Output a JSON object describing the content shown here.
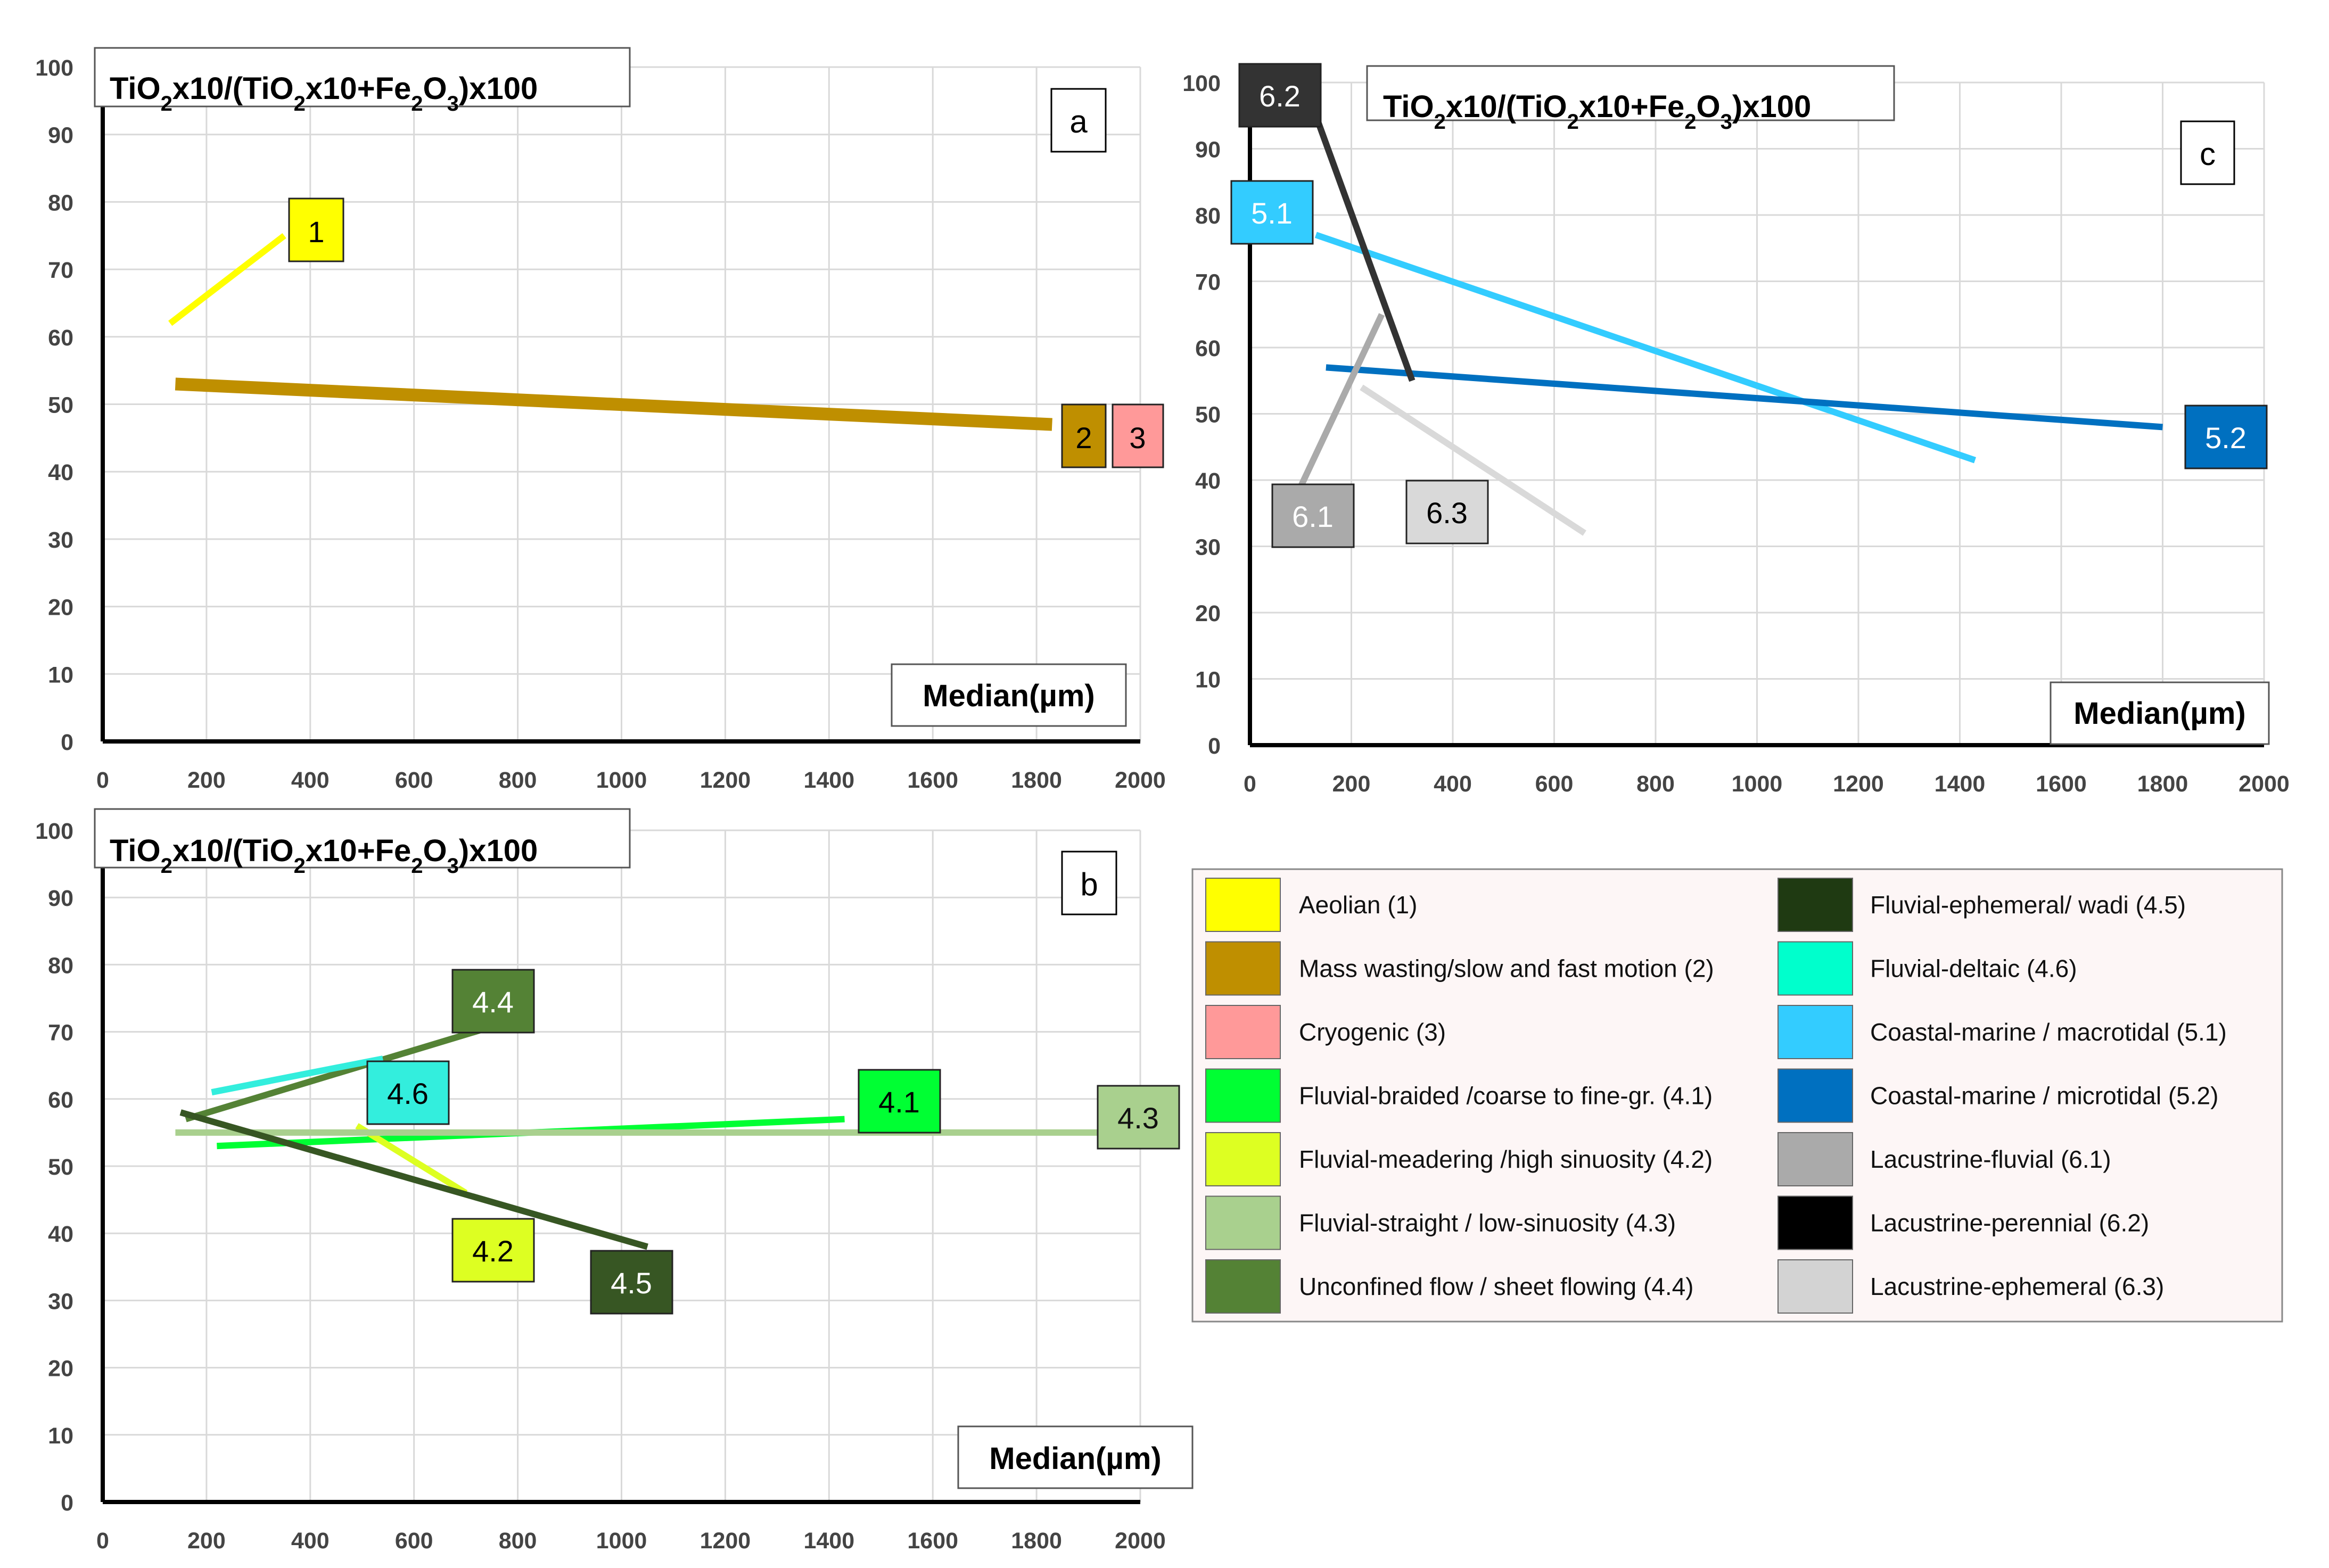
{
  "chart_data": [
    {
      "panel": "a",
      "type": "line",
      "title": "TiO2x10/(TiO2x10+Fe2O3)x100",
      "xlabel": "Median(µm)",
      "ylabel": "TiO2x10/(TiO2x10+Fe2O3)x100",
      "xlim": [
        0,
        2000
      ],
      "ylim": [
        0,
        100
      ],
      "xticks": [
        0,
        200,
        400,
        600,
        800,
        1000,
        1200,
        1400,
        1600,
        1800,
        2000
      ],
      "yticks": [
        0,
        10,
        20,
        30,
        40,
        50,
        60,
        70,
        80,
        90,
        100
      ],
      "grid": true,
      "series": [
        {
          "name": "1",
          "color": "#FFFF00",
          "x": [
            130,
            350
          ],
          "y": [
            62,
            75
          ]
        },
        {
          "name": "2",
          "color": "#BF8F00",
          "x": [
            140,
            1830
          ],
          "y": [
            53,
            47
          ]
        },
        {
          "name": "3",
          "color": "#FF9999",
          "x": [],
          "y": []
        }
      ]
    },
    {
      "panel": "b",
      "type": "line",
      "title": "TiO2x10/(TiO2x10+Fe2O3)x100",
      "xlabel": "Median(µm)",
      "ylabel": "TiO2x10/(TiO2x10+Fe2O3)x100",
      "xlim": [
        0,
        2000
      ],
      "ylim": [
        0,
        100
      ],
      "xticks": [
        0,
        200,
        400,
        600,
        800,
        1000,
        1200,
        1400,
        1600,
        1800,
        2000
      ],
      "yticks": [
        0,
        10,
        20,
        30,
        40,
        50,
        60,
        70,
        80,
        90,
        100
      ],
      "grid": true,
      "series": [
        {
          "name": "4.1",
          "color": "#00FF33",
          "x": [
            220,
            1430
          ],
          "y": [
            53,
            57
          ]
        },
        {
          "name": "4.2",
          "color": "#DDFF22",
          "x": [
            490,
            700
          ],
          "y": [
            56,
            46
          ]
        },
        {
          "name": "4.3",
          "color": "#A9D08E",
          "x": [
            140,
            2000
          ],
          "y": [
            55,
            55
          ]
        },
        {
          "name": "4.4",
          "color": "#548235",
          "x": [
            160,
            760
          ],
          "y": [
            57,
            71
          ]
        },
        {
          "name": "4.5",
          "color": "#375623",
          "x": [
            150,
            1050
          ],
          "y": [
            58,
            38
          ]
        },
        {
          "name": "4.6",
          "color": "#33EEDD",
          "x": [
            210,
            540
          ],
          "y": [
            61,
            66
          ]
        }
      ]
    },
    {
      "panel": "c",
      "type": "line",
      "title": "TiO2x10/(TiO2x10+Fe2O3)x100",
      "xlabel": "Median(µm)",
      "ylabel": "TiO2x10/(TiO2x10+Fe2O3)x100",
      "xlim": [
        0,
        2000
      ],
      "ylim": [
        0,
        100
      ],
      "xticks": [
        0,
        200,
        400,
        600,
        800,
        1000,
        1200,
        1400,
        1600,
        1800,
        2000
      ],
      "yticks": [
        0,
        10,
        20,
        30,
        40,
        50,
        60,
        70,
        80,
        90,
        100
      ],
      "grid": true,
      "series": [
        {
          "name": "5.1",
          "color": "#33CCFF",
          "x": [
            130,
            1430
          ],
          "y": [
            77,
            43
          ]
        },
        {
          "name": "5.2",
          "color": "#0070C0",
          "x": [
            150,
            1800
          ],
          "y": [
            57,
            48
          ]
        },
        {
          "name": "6.1",
          "color": "#AAAAAA",
          "x": [
            100,
            260
          ],
          "y": [
            39,
            65
          ]
        },
        {
          "name": "6.2",
          "color": "#333333",
          "x": [
            130,
            320
          ],
          "y": [
            95,
            55
          ]
        },
        {
          "name": "6.3",
          "color": "#D9D9D9",
          "x": [
            220,
            660
          ],
          "y": [
            54,
            32
          ]
        }
      ]
    }
  ],
  "legend": {
    "left": [
      {
        "label": "Aeolian (1)",
        "color": "#FFFF00"
      },
      {
        "label": "Mass wasting/slow and fast motion (2)",
        "color": "#BF8F00"
      },
      {
        "label": "Cryogenic (3)",
        "color": "#FF9999"
      },
      {
        "label": "Fluvial-braided /coarse to fine-gr. (4.1)",
        "color": "#00FF33"
      },
      {
        "label": "Fluvial-meadering /high sinuosity (4.2)",
        "color": "#DDFF22"
      },
      {
        "label": "Fluvial-straight / low-sinuosity  (4.3)",
        "color": "#A9D08E"
      },
      {
        "label": "Unconfined flow / sheet flowing (4.4)",
        "color": "#548235"
      }
    ],
    "right": [
      {
        "label": "Fluvial-ephemeral/ wadi  (4.5)",
        "color": "#1F3A12"
      },
      {
        "label": "Fluvial-deltaic (4.6)",
        "color": "#00FFCC"
      },
      {
        "label": "Coastal-marine / macrotidal (5.1)",
        "color": "#33CCFF"
      },
      {
        "label": "Coastal-marine / microtidal (5.2)",
        "color": "#0070C0"
      },
      {
        "label": "Lacustrine-fluvial (6.1)",
        "color": "#AAAAAA"
      },
      {
        "label": "Lacustrine-perennial (6.2)",
        "color": "#000000"
      },
      {
        "label": "Lacustrine-ephemeral (6.3)",
        "color": "#D3D3D3"
      }
    ]
  },
  "labels": {
    "title_tio2": "TiO",
    "title_x10": "x10/(TiO",
    "title_x10b": "x10+Fe",
    "title_o3": "O",
    "title_end": ")x100",
    "sub2": "2",
    "sub3": "3",
    "median": "Median(µm)",
    "panel_a": "a",
    "panel_b": "b",
    "panel_c": "c"
  }
}
